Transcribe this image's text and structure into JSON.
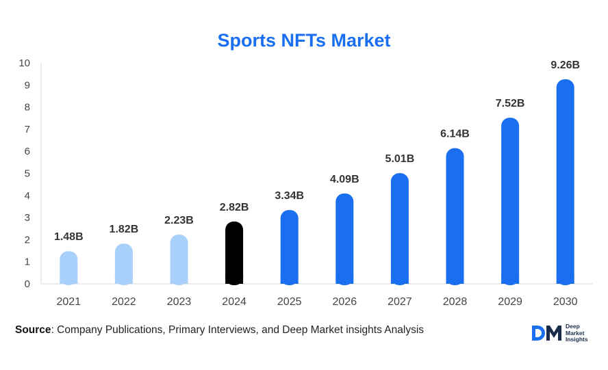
{
  "chart_data": {
    "type": "bar",
    "title": "Sports NFTs Market",
    "categories": [
      "2021",
      "2022",
      "2023",
      "2024",
      "2025",
      "2026",
      "2027",
      "2028",
      "2029",
      "2030"
    ],
    "values": [
      1.48,
      1.82,
      2.23,
      2.82,
      3.34,
      4.09,
      5.01,
      6.14,
      7.52,
      9.26
    ],
    "data_labels": [
      "1.48B",
      "1.82B",
      "2.23B",
      "2.82B",
      "3.34B",
      "4.09B",
      "5.01B",
      "6.14B",
      "7.52B",
      "9.26B"
    ],
    "bar_colors": [
      "#a9d0fb",
      "#a9d0fb",
      "#a9d0fb",
      "#000000",
      "#1a6ff0",
      "#1a6ff0",
      "#1a6ff0",
      "#1a6ff0",
      "#1a6ff0",
      "#1a6ff0"
    ],
    "ylim": [
      0,
      10
    ],
    "yticks": [
      "0",
      "1",
      "2",
      "3",
      "4",
      "5",
      "6",
      "7",
      "8",
      "9",
      "10"
    ],
    "xlabel": "",
    "ylabel": "",
    "grid": false
  },
  "source": {
    "label": "Source",
    "text": ": Company Publications, Primary Interviews, and Deep Market insights Analysis"
  },
  "logo": {
    "line1": "Deep",
    "line2": "Market",
    "line3": "Insights"
  },
  "colors": {
    "title": "#1a6ff0",
    "historic": "#a9d0fb",
    "current": "#000000",
    "forecast": "#1a6ff0"
  }
}
